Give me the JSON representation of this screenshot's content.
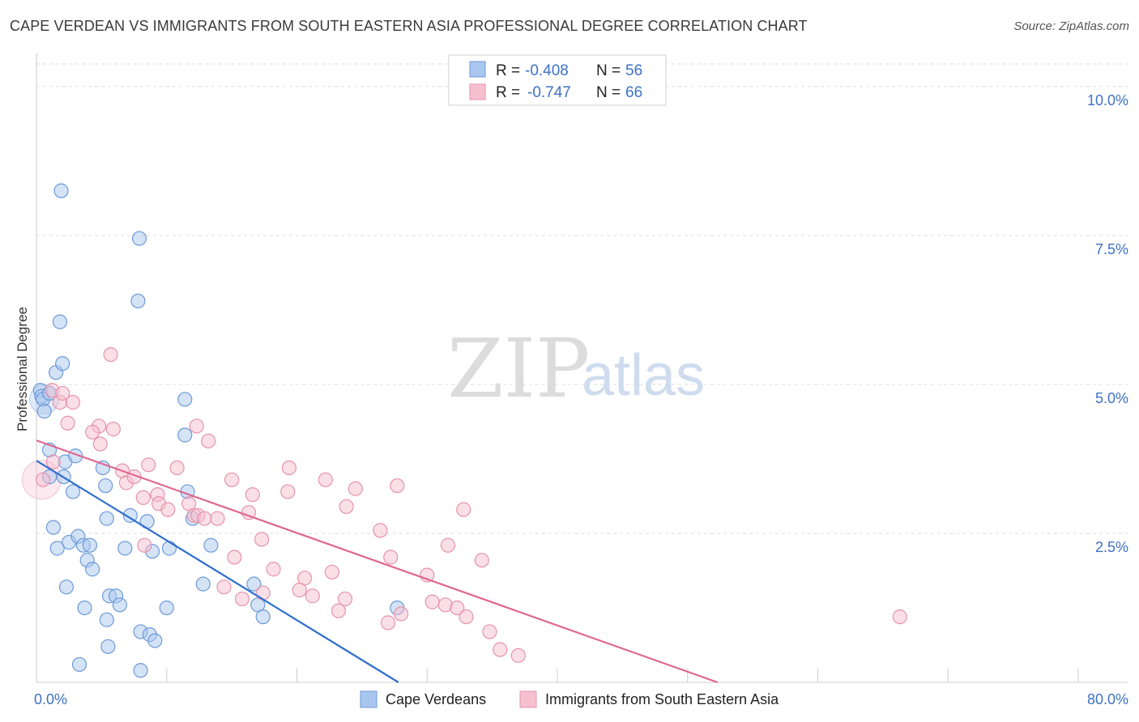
{
  "title": "CAPE VERDEAN VS IMMIGRANTS FROM SOUTH EASTERN ASIA PROFESSIONAL DEGREE CORRELATION CHART",
  "source": "Source: ZipAtlas.com",
  "watermark": {
    "zip": "ZIP",
    "atlas": "atlas"
  },
  "colors": {
    "blue_fill": "#a9c7ee",
    "blue_stroke": "#6d9ad8",
    "blue_line": "#2f6fcc",
    "pink_fill": "#f6c0d0",
    "pink_stroke": "#e693ad",
    "pink_line": "#df6690",
    "tick_text": "#3d72c4",
    "grid": "#dddddd"
  },
  "legend": {
    "rows": [
      {
        "r_label": "R =",
        "r_value": "-0.408",
        "n_label": "N =",
        "n_value": "56"
      },
      {
        "r_label": "R =",
        "r_value": "-0.747",
        "n_label": "N =",
        "n_value": "66"
      }
    ]
  },
  "chart_data": {
    "type": "scatter",
    "title": "CAPE VERDEAN VS IMMIGRANTS FROM SOUTH EASTERN ASIA PROFESSIONAL DEGREE CORRELATION CHART",
    "xlabel": "",
    "ylabel": "Professional Degree",
    "xlim": [
      0,
      80
    ],
    "ylim": [
      0,
      10.5
    ],
    "x_ticks": [
      {
        "value": 0,
        "label": "0.0%"
      },
      {
        "value": 80,
        "label": "80.0%"
      }
    ],
    "y_ticks": [
      {
        "value": 2.5,
        "label": "2.5%"
      },
      {
        "value": 5.0,
        "label": "5.0%"
      },
      {
        "value": 7.5,
        "label": "7.5%"
      },
      {
        "value": 10.0,
        "label": "10.0%"
      }
    ],
    "grid": true,
    "legend_position": "top-center",
    "series": [
      {
        "name": "Cape Verdeans",
        "color_key": "blue",
        "trend": {
          "x1": 0,
          "y1": 3.72,
          "x2": 27.8,
          "y2": 0
        },
        "points": [
          [
            0.3,
            4.9
          ],
          [
            0.4,
            4.8
          ],
          [
            0.5,
            4.75
          ],
          [
            0.6,
            4.55
          ],
          [
            1.0,
            4.85
          ],
          [
            1.5,
            5.2
          ],
          [
            2.0,
            5.35
          ],
          [
            1.8,
            6.05
          ],
          [
            1.9,
            8.25
          ],
          [
            7.8,
            6.4
          ],
          [
            7.9,
            7.45
          ],
          [
            1.0,
            3.9
          ],
          [
            2.2,
            3.7
          ],
          [
            3.0,
            3.8
          ],
          [
            1.0,
            3.45
          ],
          [
            2.1,
            3.45
          ],
          [
            2.8,
            3.2
          ],
          [
            5.1,
            3.6
          ],
          [
            5.3,
            3.3
          ],
          [
            7.2,
            2.8
          ],
          [
            5.4,
            2.75
          ],
          [
            8.5,
            2.7
          ],
          [
            11.4,
            4.15
          ],
          [
            11.6,
            3.2
          ],
          [
            12.0,
            2.75
          ],
          [
            11.4,
            4.75
          ],
          [
            1.3,
            2.6
          ],
          [
            1.6,
            2.25
          ],
          [
            2.5,
            2.35
          ],
          [
            3.2,
            2.45
          ],
          [
            3.6,
            2.3
          ],
          [
            4.1,
            2.3
          ],
          [
            6.8,
            2.25
          ],
          [
            8.9,
            2.2
          ],
          [
            10.2,
            2.25
          ],
          [
            13.4,
            2.3
          ],
          [
            3.9,
            2.05
          ],
          [
            4.3,
            1.9
          ],
          [
            2.3,
            1.6
          ],
          [
            5.6,
            1.45
          ],
          [
            6.1,
            1.45
          ],
          [
            3.7,
            1.25
          ],
          [
            6.4,
            1.3
          ],
          [
            10.0,
            1.25
          ],
          [
            5.4,
            1.05
          ],
          [
            12.8,
            1.65
          ],
          [
            16.7,
            1.65
          ],
          [
            17.0,
            1.3
          ],
          [
            17.4,
            1.1
          ],
          [
            8.0,
            0.85
          ],
          [
            8.7,
            0.8
          ],
          [
            9.1,
            0.7
          ],
          [
            5.5,
            0.6
          ],
          [
            3.3,
            0.3
          ],
          [
            8.0,
            0.2
          ],
          [
            27.7,
            1.25
          ]
        ]
      },
      {
        "name": "Immigrants from South Eastern Asia",
        "color_key": "pink",
        "trend": {
          "x1": 0,
          "y1": 4.06,
          "x2": 52.3,
          "y2": 0
        },
        "points": [
          [
            0.5,
            3.4
          ],
          [
            1.2,
            4.9
          ],
          [
            1.8,
            4.7
          ],
          [
            2.0,
            4.85
          ],
          [
            2.8,
            4.7
          ],
          [
            2.4,
            4.35
          ],
          [
            4.8,
            4.3
          ],
          [
            4.3,
            4.2
          ],
          [
            5.9,
            4.25
          ],
          [
            4.9,
            4.0
          ],
          [
            5.7,
            5.5
          ],
          [
            6.6,
            3.55
          ],
          [
            6.9,
            3.35
          ],
          [
            7.5,
            3.45
          ],
          [
            8.2,
            3.1
          ],
          [
            8.6,
            3.65
          ],
          [
            9.3,
            3.15
          ],
          [
            9.4,
            3.0
          ],
          [
            10.1,
            2.9
          ],
          [
            10.8,
            3.6
          ],
          [
            11.7,
            3.0
          ],
          [
            12.1,
            2.8
          ],
          [
            12.4,
            2.8
          ],
          [
            12.9,
            2.75
          ],
          [
            12.3,
            4.3
          ],
          [
            13.2,
            4.05
          ],
          [
            13.9,
            2.75
          ],
          [
            15.0,
            3.4
          ],
          [
            16.6,
            3.15
          ],
          [
            16.3,
            2.85
          ],
          [
            17.3,
            2.4
          ],
          [
            19.3,
            3.2
          ],
          [
            19.4,
            3.6
          ],
          [
            15.2,
            2.1
          ],
          [
            18.2,
            1.9
          ],
          [
            22.2,
            3.4
          ],
          [
            23.8,
            2.95
          ],
          [
            24.5,
            3.25
          ],
          [
            26.4,
            2.55
          ],
          [
            27.7,
            3.3
          ],
          [
            32.8,
            2.9
          ],
          [
            31.6,
            2.3
          ],
          [
            34.2,
            2.05
          ],
          [
            27.2,
            2.1
          ],
          [
            30.0,
            1.8
          ],
          [
            22.7,
            1.85
          ],
          [
            20.6,
            1.75
          ],
          [
            20.2,
            1.55
          ],
          [
            21.2,
            1.45
          ],
          [
            14.4,
            1.6
          ],
          [
            15.8,
            1.4
          ],
          [
            17.4,
            1.5
          ],
          [
            23.7,
            1.4
          ],
          [
            23.2,
            1.2
          ],
          [
            28.0,
            1.15
          ],
          [
            27.0,
            1.0
          ],
          [
            30.4,
            1.35
          ],
          [
            31.4,
            1.3
          ],
          [
            32.3,
            1.25
          ],
          [
            33.0,
            1.1
          ],
          [
            8.3,
            2.3
          ],
          [
            34.8,
            0.85
          ],
          [
            35.6,
            0.55
          ],
          [
            37.0,
            0.45
          ],
          [
            66.3,
            1.1
          ],
          [
            1.3,
            3.7
          ]
        ]
      }
    ]
  },
  "bottom_legend": [
    {
      "label": "Cape Verdeans",
      "color_key": "blue"
    },
    {
      "label": "Immigrants from South Eastern Asia",
      "color_key": "pink"
    }
  ]
}
